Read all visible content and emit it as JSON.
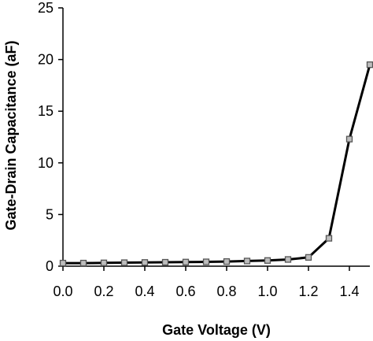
{
  "chart_data": {
    "type": "line",
    "xlabel": "Gate Voltage (V)",
    "ylabel": "Gate-Drain Capacitance (aF)",
    "xlim": [
      0,
      1.5
    ],
    "ylim": [
      0,
      25
    ],
    "x_ticks": [
      0.0,
      0.2,
      0.4,
      0.6,
      0.8,
      1.0,
      1.2,
      1.4
    ],
    "x_tick_labels": [
      "0.0",
      "0.2",
      "0.4",
      "0.6",
      "0.8",
      "1.0",
      "1.2",
      "1.4"
    ],
    "y_ticks": [
      0,
      5,
      10,
      15,
      20,
      25
    ],
    "y_tick_labels": [
      "0",
      "5",
      "10",
      "15",
      "20",
      "25"
    ],
    "grid": false,
    "legend": "none",
    "series": [
      {
        "x": [
          0.0,
          0.1,
          0.2,
          0.3,
          0.4,
          0.5,
          0.6,
          0.7,
          0.8,
          0.9,
          1.0,
          1.1,
          1.2,
          1.3,
          1.4,
          1.5
        ],
        "values": [
          0.3,
          0.3,
          0.32,
          0.34,
          0.36,
          0.38,
          0.4,
          0.42,
          0.45,
          0.5,
          0.55,
          0.65,
          0.85,
          2.7,
          12.3,
          19.5
        ],
        "color": "#000000",
        "marker": "square",
        "marker_fill": "#bdbdbd",
        "marker_edge": "#555555"
      }
    ]
  }
}
